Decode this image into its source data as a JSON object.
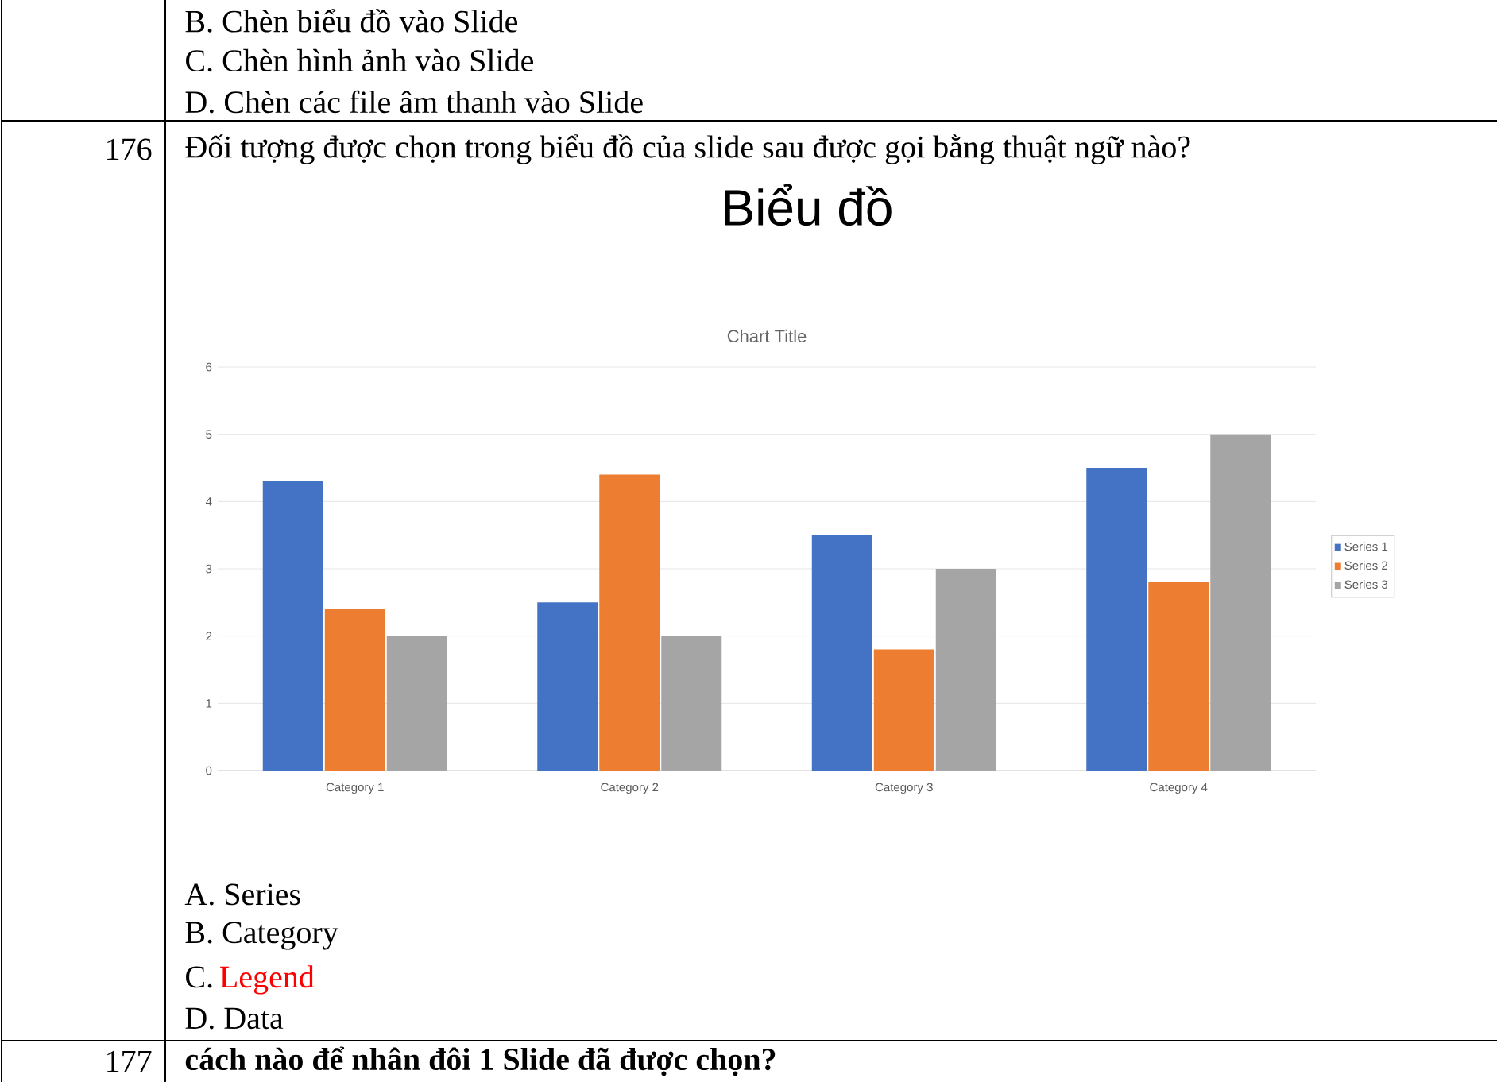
{
  "chart_data": {
    "type": "bar",
    "title": "Chart Title",
    "categories": [
      "Category 1",
      "Category 2",
      "Category 3",
      "Category 4"
    ],
    "series": [
      {
        "name": "Series 1",
        "color": "#4472c4",
        "values": [
          4.3,
          2.5,
          3.5,
          4.5
        ]
      },
      {
        "name": "Series 2",
        "color": "#ed7d31",
        "values": [
          2.4,
          4.4,
          1.8,
          2.8
        ]
      },
      {
        "name": "Series 3",
        "color": "#a5a5a5",
        "values": [
          2,
          2,
          3,
          5
        ]
      }
    ],
    "ylim": [
      0,
      6
    ],
    "yticks": [
      0,
      1,
      2,
      3,
      4,
      5,
      6
    ],
    "grid": "y",
    "legend": "right",
    "annotations": [
      "B. Chèn biểu đồ vào Slide",
      "C. Chèn hình ảnh vào Slide",
      "D. Chèn các file âm thanh vào Slide",
      "176",
      "Đối tượng được chọn trong biểu đồ của slide sau được gọi bằng thuật ngữ nào?",
      "Biểu đồ",
      "A. Series",
      "B. Category",
      "C.",
      "Legend",
      "D. Data",
      "177",
      "cách nào để nhân đôi 1 Slide đã được chọn?"
    ]
  }
}
